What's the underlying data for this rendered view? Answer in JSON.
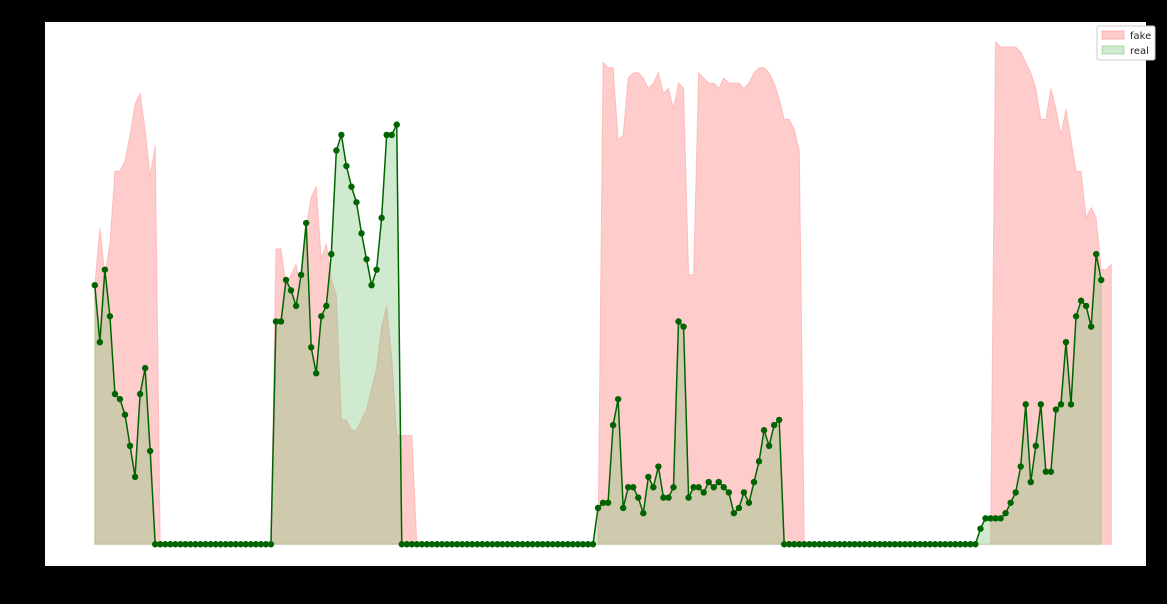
{
  "chart_data": {
    "type": "area",
    "title": "",
    "xlabel": "",
    "ylabel": "",
    "xlim": [
      -9.9,
      208.9
    ],
    "ylim": [
      -4.2,
      100.8
    ],
    "grid": false,
    "legend": "top-right",
    "series": [
      {
        "name": "fake",
        "style": "area",
        "color": "#ff9a9a",
        "fill_alpha": 0.5,
        "values": [
          50,
          61,
          52,
          58,
          72,
          72,
          74,
          79,
          85,
          87,
          80,
          71,
          77,
          0,
          0,
          0,
          0,
          0,
          0,
          0,
          0,
          0,
          0,
          0,
          0,
          0,
          0,
          0,
          0,
          0,
          0,
          0,
          0,
          0,
          0,
          0,
          57,
          57,
          50,
          52,
          54,
          49,
          61,
          67,
          69,
          55,
          58,
          51,
          48,
          24,
          24,
          22,
          22,
          24,
          26,
          30,
          34,
          42,
          46,
          36,
          21,
          21,
          21,
          21,
          0,
          0,
          0,
          0,
          0,
          0,
          0,
          0,
          0,
          0,
          0,
          0,
          0,
          0,
          0,
          0,
          0,
          0,
          0,
          0,
          0,
          0,
          0,
          0,
          0,
          0,
          0,
          0,
          0,
          0,
          0,
          0,
          0,
          0,
          0,
          0,
          0,
          93,
          92,
          92,
          78,
          79,
          90,
          91,
          91,
          90,
          88,
          89,
          91,
          87,
          88,
          84,
          89,
          88,
          52,
          52,
          91,
          90,
          89,
          89,
          88,
          90,
          89,
          89,
          89,
          88,
          89,
          91,
          92,
          92,
          91,
          89,
          86,
          82,
          82,
          80,
          76,
          0,
          0,
          0,
          0,
          0,
          0,
          0,
          0,
          0,
          0,
          0,
          0,
          0,
          0,
          0,
          0,
          0,
          0,
          0,
          0,
          0,
          0,
          0,
          0,
          0,
          0,
          0,
          0,
          0,
          0,
          0,
          0,
          0,
          0,
          0,
          0,
          0,
          0,
          97,
          96,
          96,
          96,
          96,
          95,
          93,
          91,
          88,
          82,
          82,
          88,
          84,
          79,
          84,
          78,
          72,
          72,
          63,
          65,
          63,
          53,
          53,
          54
        ]
      },
      {
        "name": "real",
        "style": "line+area",
        "color": "#006400",
        "fill_color": "#76c476",
        "fill_alpha": 0.35,
        "values": [
          50,
          39,
          53,
          44,
          29,
          28,
          25,
          19,
          13,
          29,
          34,
          18,
          0,
          0,
          0,
          0,
          0,
          0,
          0,
          0,
          0,
          0,
          0,
          0,
          0,
          0,
          0,
          0,
          0,
          0,
          0,
          0,
          0,
          0,
          0,
          0,
          43,
          43,
          51,
          49,
          46,
          52,
          62,
          38,
          33,
          44,
          46,
          56,
          76,
          79,
          73,
          69,
          66,
          60,
          55,
          50,
          53,
          63,
          79,
          79,
          81,
          0,
          0,
          0,
          0,
          0,
          0,
          0,
          0,
          0,
          0,
          0,
          0,
          0,
          0,
          0,
          0,
          0,
          0,
          0,
          0,
          0,
          0,
          0,
          0,
          0,
          0,
          0,
          0,
          0,
          0,
          0,
          0,
          0,
          0,
          0,
          0,
          0,
          0,
          0,
          7,
          8,
          8,
          23,
          28,
          7,
          11,
          11,
          9,
          6,
          13,
          11,
          15,
          9,
          9,
          11,
          43,
          42,
          9,
          11,
          11,
          10,
          12,
          11,
          12,
          11,
          10,
          6,
          7,
          10,
          8,
          12,
          16,
          22,
          19,
          23,
          24,
          0,
          0,
          0,
          0,
          0,
          0,
          0,
          0,
          0,
          0,
          0,
          0,
          0,
          0,
          0,
          0,
          0,
          0,
          0,
          0,
          0,
          0,
          0,
          0,
          0,
          0,
          0,
          0,
          0,
          0,
          0,
          0,
          0,
          0,
          0,
          0,
          0,
          0,
          0,
          3,
          5,
          5,
          5,
          5,
          6,
          8,
          10,
          15,
          27,
          12,
          19,
          27,
          14,
          14,
          26,
          27,
          39,
          27,
          44,
          47,
          46,
          42,
          56,
          51
        ]
      }
    ]
  }
}
